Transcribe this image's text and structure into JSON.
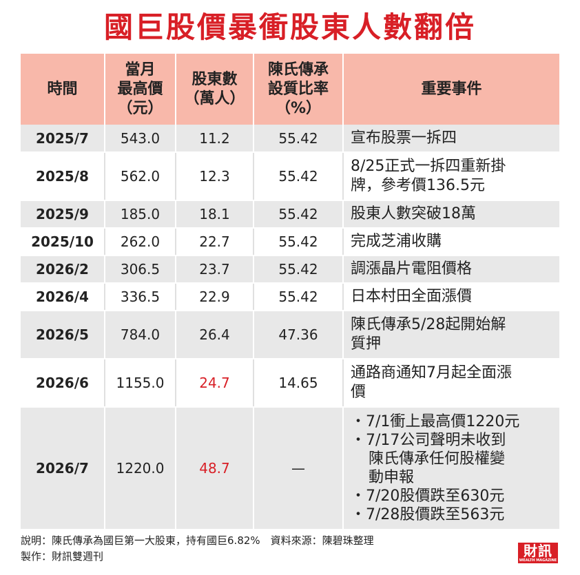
{
  "title": "國巨股價暴衝股東人數翻倍",
  "headers": {
    "time": "時間",
    "price": [
      "當月",
      "最高價",
      "（元）"
    ],
    "holders": [
      "股東數",
      "（萬人）"
    ],
    "pledge": [
      "陳氏傳承",
      "設質比率",
      "（%）"
    ],
    "event": "重要事件"
  },
  "rows": [
    {
      "time": "2025/7",
      "price": "543.0",
      "holders": "11.2",
      "ratio": "55.42",
      "event": [
        "宣布股票一拆四"
      ]
    },
    {
      "time": "2025/8",
      "price": "562.0",
      "holders": "12.3",
      "ratio": "55.42",
      "event": [
        "8/25正式一拆四重新掛",
        "牌，參考價136.5元"
      ]
    },
    {
      "time": "2025/9",
      "price": "185.0",
      "holders": "18.1",
      "ratio": "55.42",
      "event": [
        "股東人數突破18萬"
      ]
    },
    {
      "time": "2025/10",
      "price": "262.0",
      "holders": "22.7",
      "ratio": "55.42",
      "event": [
        "完成芝浦收購"
      ]
    },
    {
      "time": "2026/2",
      "price": "306.5",
      "holders": "23.7",
      "ratio": "55.42",
      "event": [
        "調漲晶片電阻價格"
      ]
    },
    {
      "time": "2026/4",
      "price": "336.5",
      "holders": "22.9",
      "ratio": "55.42",
      "event": [
        "日本村田全面漲價"
      ]
    },
    {
      "time": "2026/5",
      "price": "784.0",
      "holders": "26.4",
      "ratio": "47.36",
      "event": [
        "陳氏傳承5/28起開始解",
        "質押"
      ]
    },
    {
      "time": "2026/6",
      "price": "1155.0",
      "holders": "24.7",
      "ratio": "14.65",
      "event": [
        "通路商通知7月起全面漲",
        "價"
      ]
    },
    {
      "time": "2026/7",
      "price": "1220.0",
      "holders": "48.7",
      "ratio": "—",
      "event": []
    }
  ],
  "last_event_bullets": [
    {
      "bullet": "・7/1衝上最高價1220元",
      "cont": []
    },
    {
      "bullet": "・7/17公司聲明未收到",
      "cont": [
        "陳氏傳承任何股權變",
        "動申報"
      ]
    },
    {
      "bullet": "・7/20股價跌至630元",
      "cont": []
    },
    {
      "bullet": "・7/28股價跌至563元",
      "cont": []
    }
  ],
  "note_1": "說明：陳氏傳承為國巨第一大股東，持有國巨6.82%　資料來源：陳碧珠整理",
  "note_2": "製作：財訊雙週刊",
  "logo_text": "財訊",
  "logo_sub": "WEALTH MAGAZINE",
  "colors": {
    "title": "#d81f26",
    "header_bg": "#f8b8aa",
    "odd_row_bg": "#e8e8e8",
    "highlight": "#d81f26"
  }
}
